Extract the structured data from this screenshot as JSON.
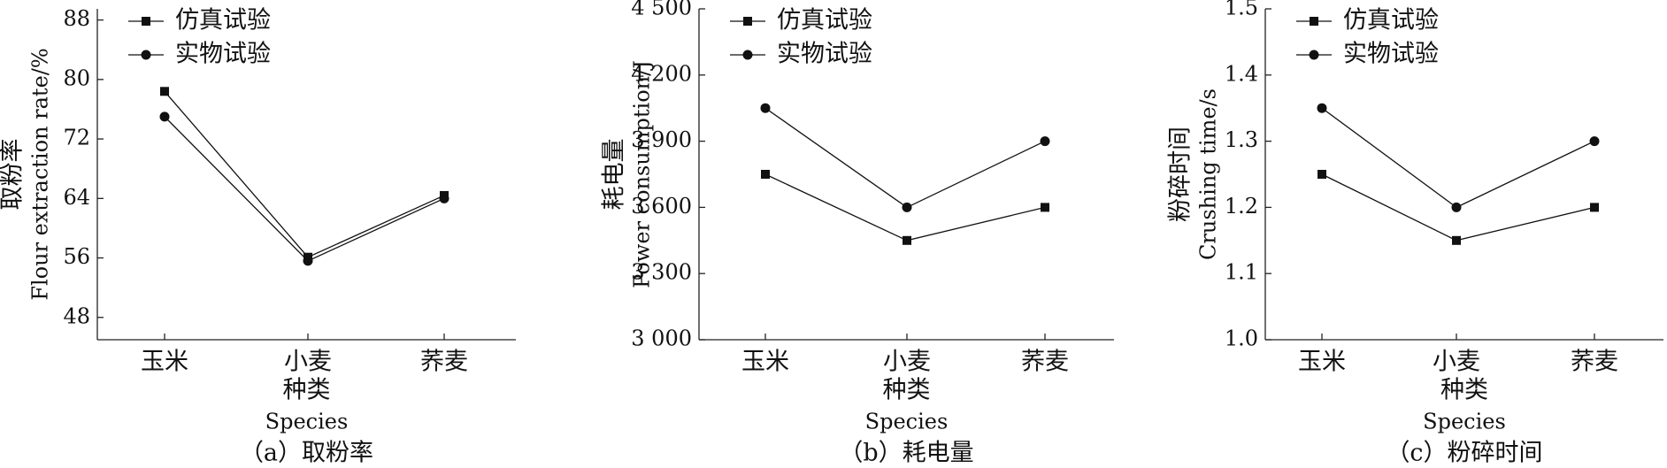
{
  "chart_data": [
    {
      "type": "line",
      "caption": "（a）取粉率",
      "ylabel": [
        "取粉率",
        "Flour extraction rate/%"
      ],
      "xlabel": [
        "种类",
        "Species"
      ],
      "categories": [
        "玉米",
        "小麦",
        "荞麦"
      ],
      "series": [
        {
          "name": "仿真试验",
          "color": "#111111",
          "marker": "square",
          "values": [
            78.4,
            56.1,
            64.4
          ]
        },
        {
          "name": "实物试验",
          "color": "#111111",
          "marker": "circle",
          "values": [
            75.0,
            55.6,
            64.0
          ]
        }
      ],
      "ylim": [
        45,
        89.5
      ],
      "yticks": [
        48,
        56,
        64,
        72,
        80,
        88
      ]
    },
    {
      "type": "line",
      "caption": "（b）耗电量",
      "ylabel": [
        "耗电量",
        "Power consumption/J"
      ],
      "xlabel": [
        "种类",
        "Species"
      ],
      "categories": [
        "玉米",
        "小麦",
        "荞麦"
      ],
      "series": [
        {
          "name": "仿真试验",
          "color": "#111111",
          "marker": "square",
          "values": [
            3750,
            3450,
            3600
          ]
        },
        {
          "name": "实物试验",
          "color": "#111111",
          "marker": "circle",
          "values": [
            4050,
            3600,
            3900
          ]
        }
      ],
      "ylim": [
        3000,
        4500
      ],
      "yticks": [
        {
          "value": 3000,
          "label": "3 000"
        },
        {
          "value": 3300,
          "label": "3 300"
        },
        {
          "value": 3600,
          "label": "3 600"
        },
        {
          "value": 3900,
          "label": "3 900"
        },
        {
          "value": 4200,
          "label": "4 200"
        },
        {
          "value": 4500,
          "label": "4 500"
        }
      ]
    },
    {
      "type": "line",
      "caption": "（c）粉碎时间",
      "ylabel": [
        "粉碎时间",
        "Crushing time/s"
      ],
      "xlabel": [
        "种类",
        "Species"
      ],
      "categories": [
        "玉米",
        "小麦",
        "荞麦"
      ],
      "series": [
        {
          "name": "仿真试验",
          "color": "#111111",
          "marker": "square",
          "values": [
            1.25,
            1.15,
            1.2
          ]
        },
        {
          "name": "实物试验",
          "color": "#111111",
          "marker": "circle",
          "values": [
            1.35,
            1.2,
            1.3
          ]
        }
      ],
      "ylim": [
        1.0,
        1.5
      ],
      "yticks": [
        {
          "value": 1,
          "label": "1.0"
        },
        1.1,
        1.2,
        1.3,
        1.4,
        1.5
      ]
    }
  ]
}
